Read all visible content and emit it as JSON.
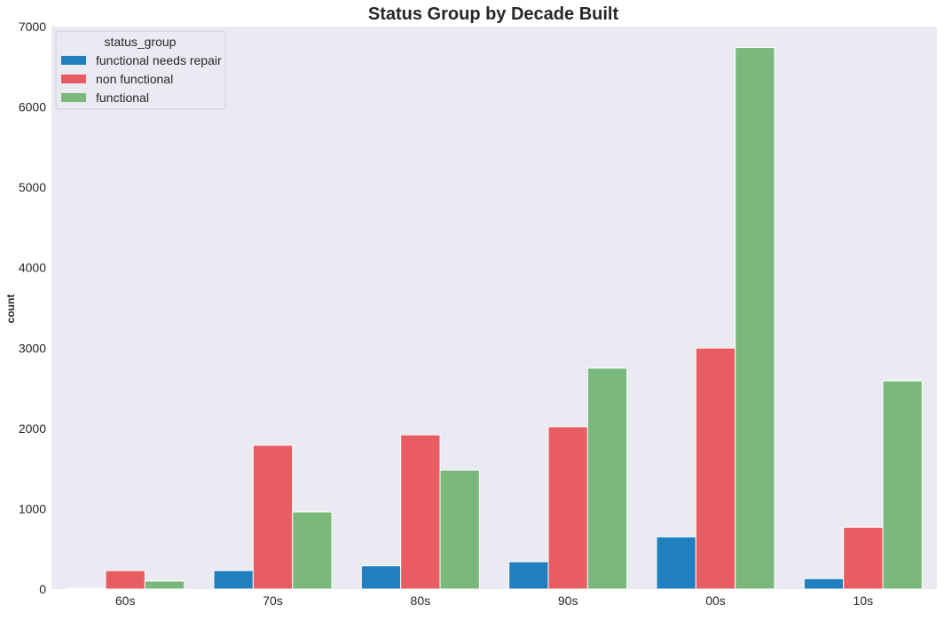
{
  "chart_data": {
    "type": "bar",
    "title": "Status Group by Decade Built",
    "xlabel": "",
    "ylabel": "count",
    "categories": [
      "60s",
      "70s",
      "80s",
      "90s",
      "00s",
      "10s"
    ],
    "series": [
      {
        "name": "functional needs repair",
        "values": [
          10,
          230,
          290,
          340,
          650,
          130
        ],
        "color": "#1f7fbf"
      },
      {
        "name": "non functional",
        "values": [
          230,
          1790,
          1920,
          2020,
          3000,
          770
        ],
        "color": "#e85d63"
      },
      {
        "name": "functional",
        "values": [
          100,
          960,
          1480,
          2750,
          6740,
          2590
        ],
        "color": "#7ab87c"
      }
    ],
    "ylim": [
      0,
      7000
    ],
    "yticks": [
      0,
      1000,
      2000,
      3000,
      4000,
      5000,
      6000,
      7000
    ],
    "grid": false,
    "legend": {
      "title": "status_group",
      "placement": "top-left"
    },
    "background_color": "#eaeaf2"
  }
}
